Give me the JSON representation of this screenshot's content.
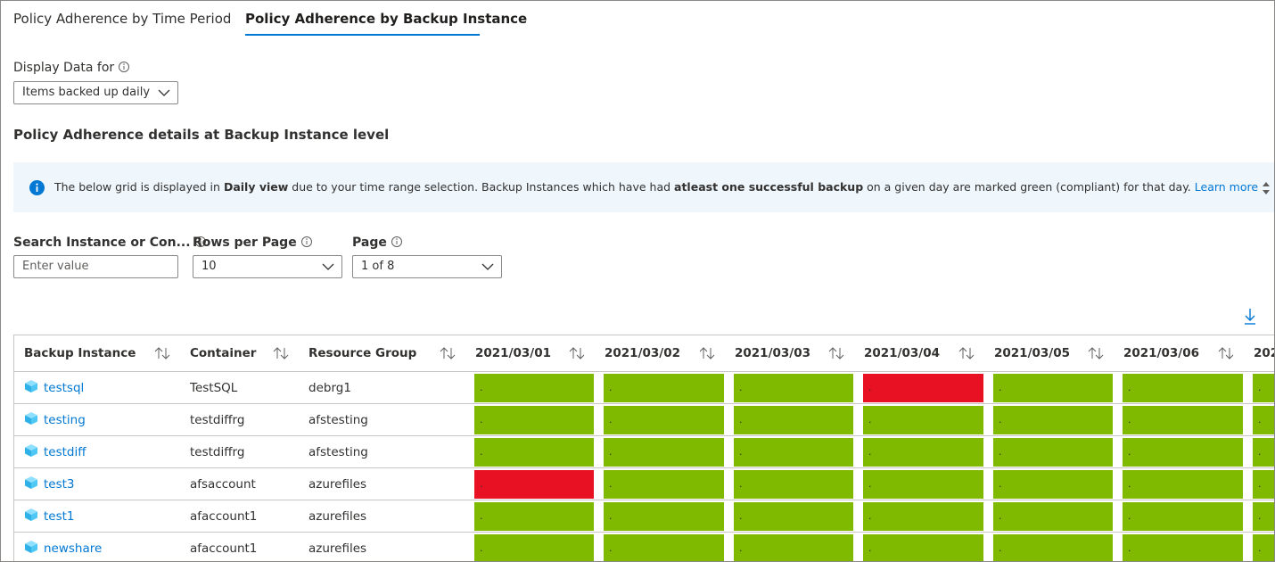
{
  "tabs": [
    "Policy Adherence by Time Period",
    "Policy Adherence by Backup Instance"
  ],
  "display_data": {
    "label": "Display Data for",
    "value": "Items backed up daily"
  },
  "section_title": "Policy Adherence details at Backup Instance level",
  "banner": {
    "segments": [
      {
        "text": "The below grid is displayed in ",
        "bold": false
      },
      {
        "text": "Daily view",
        "bold": true
      },
      {
        "text": " due to your time range selection. Backup Instances which have had ",
        "bold": false
      },
      {
        "text": "atleast one successful backup",
        "bold": true
      },
      {
        "text": " on a given day are marked green (compliant) for that day. ",
        "bold": false
      }
    ],
    "link": "Learn more"
  },
  "filters": [
    {
      "label": "Search Instance or Con...",
      "placeholder": "Enter value"
    },
    {
      "label": "Rows per Page",
      "value": "10"
    },
    {
      "label": "Page",
      "value": "1 of 8"
    }
  ],
  "table": {
    "columns": [
      "Backup Instance",
      "Container",
      "Resource Group",
      "2021/03/01",
      "2021/03/02",
      "2021/03/03",
      "2021/03/04",
      "2021/03/05",
      "2021/03/06",
      "202"
    ],
    "rows": [
      {
        "instance": "testsql",
        "container": "TestSQL",
        "resource_group": "debrg1",
        "cells": [
          {
            "text": ".",
            "color": "#7fba00"
          },
          {
            "text": ".",
            "color": "#7fba00"
          },
          {
            "text": ".",
            "color": "#7fba00"
          },
          {
            "text": ".",
            "color": "#e81123"
          },
          {
            "text": ".",
            "color": "#7fba00"
          },
          {
            "text": ".",
            "color": "#7fba00"
          },
          {
            "text": ".",
            "color": "#7fba00"
          }
        ]
      },
      {
        "instance": "testing",
        "container": "testdiffrg",
        "resource_group": "afstesting",
        "cells": [
          {
            "text": ".",
            "color": "#7fba00"
          },
          {
            "text": ".",
            "color": "#7fba00"
          },
          {
            "text": ".",
            "color": "#7fba00"
          },
          {
            "text": ".",
            "color": "#7fba00"
          },
          {
            "text": ".",
            "color": "#7fba00"
          },
          {
            "text": ".",
            "color": "#7fba00"
          },
          {
            "text": ".",
            "color": "#7fba00"
          }
        ]
      },
      {
        "instance": "testdiff",
        "container": "testdiffrg",
        "resource_group": "afstesting",
        "cells": [
          {
            "text": ".",
            "color": "#7fba00"
          },
          {
            "text": ".",
            "color": "#7fba00"
          },
          {
            "text": ".",
            "color": "#7fba00"
          },
          {
            "text": ".",
            "color": "#7fba00"
          },
          {
            "text": ".",
            "color": "#7fba00"
          },
          {
            "text": ".",
            "color": "#7fba00"
          },
          {
            "text": ".",
            "color": "#7fba00"
          }
        ]
      },
      {
        "instance": "test3",
        "container": "afsaccount",
        "resource_group": "azurefiles",
        "cells": [
          {
            "text": ".",
            "color": "#e81123"
          },
          {
            "text": ".",
            "color": "#7fba00"
          },
          {
            "text": ".",
            "color": "#7fba00"
          },
          {
            "text": ".",
            "color": "#7fba00"
          },
          {
            "text": ".",
            "color": "#7fba00"
          },
          {
            "text": ".",
            "color": "#7fba00"
          },
          {
            "text": ".",
            "color": "#7fba00"
          }
        ]
      },
      {
        "instance": "test1",
        "container": "afaccount1",
        "resource_group": "azurefiles",
        "cells": [
          {
            "text": ".",
            "color": "#7fba00"
          },
          {
            "text": ".",
            "color": "#7fba00"
          },
          {
            "text": ".",
            "color": "#7fba00"
          },
          {
            "text": ".",
            "color": "#7fba00"
          },
          {
            "text": ".",
            "color": "#7fba00"
          },
          {
            "text": ".",
            "color": "#7fba00"
          },
          {
            "text": ".",
            "color": "#7fba00"
          }
        ]
      },
      {
        "instance": "newshare",
        "container": "afaccount1",
        "resource_group": "azurefiles",
        "cells": [
          {
            "text": ".",
            "color": "#7fba00"
          },
          {
            "text": ".",
            "color": "#7fba00"
          },
          {
            "text": ".",
            "color": "#7fba00"
          },
          {
            "text": ".",
            "color": "#7fba00"
          },
          {
            "text": ".",
            "color": "#7fba00"
          },
          {
            "text": ".",
            "color": "#7fba00"
          },
          {
            "text": ".",
            "color": "#7fba00"
          }
        ]
      }
    ]
  }
}
